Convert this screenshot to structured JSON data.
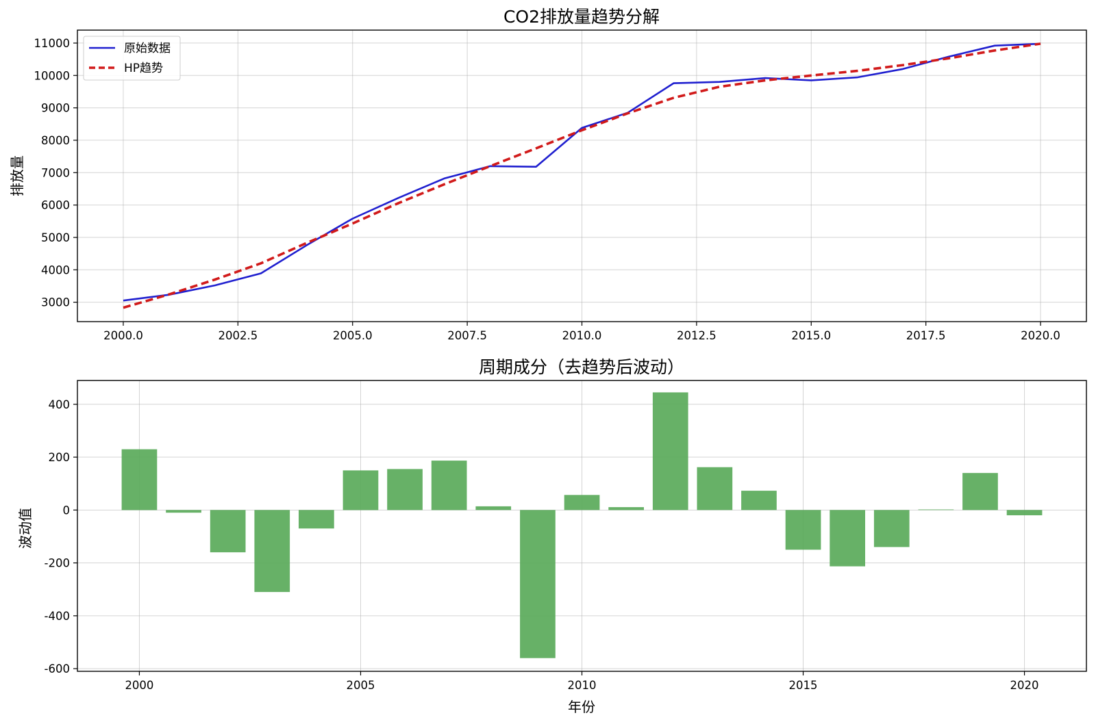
{
  "chart_data": [
    {
      "type": "line",
      "title": "CO2排放量趋势分解",
      "xlabel": "",
      "ylabel": "排放量",
      "xlim": [
        1999.0,
        2021.0
      ],
      "ylim": [
        2400,
        11400
      ],
      "x_ticks": [
        2000.0,
        2002.5,
        2005.0,
        2007.5,
        2010.0,
        2012.5,
        2015.0,
        2017.5,
        2020.0
      ],
      "x_tick_labels": [
        "2000.0",
        "2002.5",
        "2005.0",
        "2007.5",
        "2010.0",
        "2012.5",
        "2015.0",
        "2017.5",
        "2020.0"
      ],
      "y_ticks": [
        3000,
        4000,
        5000,
        6000,
        7000,
        8000,
        9000,
        10000,
        11000
      ],
      "y_tick_labels": [
        "3000",
        "4000",
        "5000",
        "6000",
        "7000",
        "8000",
        "9000",
        "10000",
        "11000"
      ],
      "grid": true,
      "legend_position": "top-left",
      "x": [
        2000,
        2001,
        2002,
        2003,
        2004,
        2005,
        2006,
        2007,
        2008,
        2009,
        2010,
        2011,
        2012,
        2013,
        2014,
        2015,
        2016,
        2017,
        2018,
        2019,
        2020
      ],
      "series": [
        {
          "name": "原始数据",
          "color": "#1f1fcf",
          "style": "solid",
          "values": [
            3050,
            3230,
            3520,
            3890,
            4760,
            5580,
            6220,
            6820,
            7200,
            7180,
            8380,
            8850,
            9760,
            9800,
            9920,
            9850,
            9940,
            10200,
            10580,
            10920,
            10980
          ]
        },
        {
          "name": "HP趋势",
          "color": "#d11a1a",
          "style": "dashed",
          "values": [
            2830,
            3240,
            3700,
            4200,
            4830,
            5430,
            6060,
            6640,
            7200,
            7750,
            8310,
            8830,
            9310,
            9650,
            9850,
            10000,
            10140,
            10320,
            10530,
            10770,
            10980
          ]
        }
      ]
    },
    {
      "type": "bar",
      "title": "周期成分（去趋势后波动）",
      "xlabel": "年份",
      "ylabel": "波动值",
      "xlim": [
        1998.6,
        2021.4
      ],
      "ylim": [
        -610,
        490
      ],
      "x_ticks": [
        2000,
        2005,
        2010,
        2015,
        2020
      ],
      "x_tick_labels": [
        "2000",
        "2005",
        "2010",
        "2015",
        "2020"
      ],
      "y_ticks": [
        -600,
        -400,
        -200,
        0,
        200,
        400
      ],
      "y_tick_labels": [
        "-600",
        "-400",
        "-200",
        "0",
        "200",
        "400"
      ],
      "grid": true,
      "bar_color": "#5aaa5a",
      "categories": [
        2000,
        2001,
        2002,
        2003,
        2004,
        2005,
        2006,
        2007,
        2008,
        2009,
        2010,
        2011,
        2012,
        2013,
        2014,
        2015,
        2016,
        2017,
        2018,
        2019,
        2020
      ],
      "values": [
        230,
        -10,
        -160,
        -310,
        -70,
        150,
        155,
        187,
        14,
        -560,
        57,
        11,
        445,
        162,
        73,
        -150,
        -213,
        -140,
        2,
        140,
        -20
      ]
    }
  ]
}
